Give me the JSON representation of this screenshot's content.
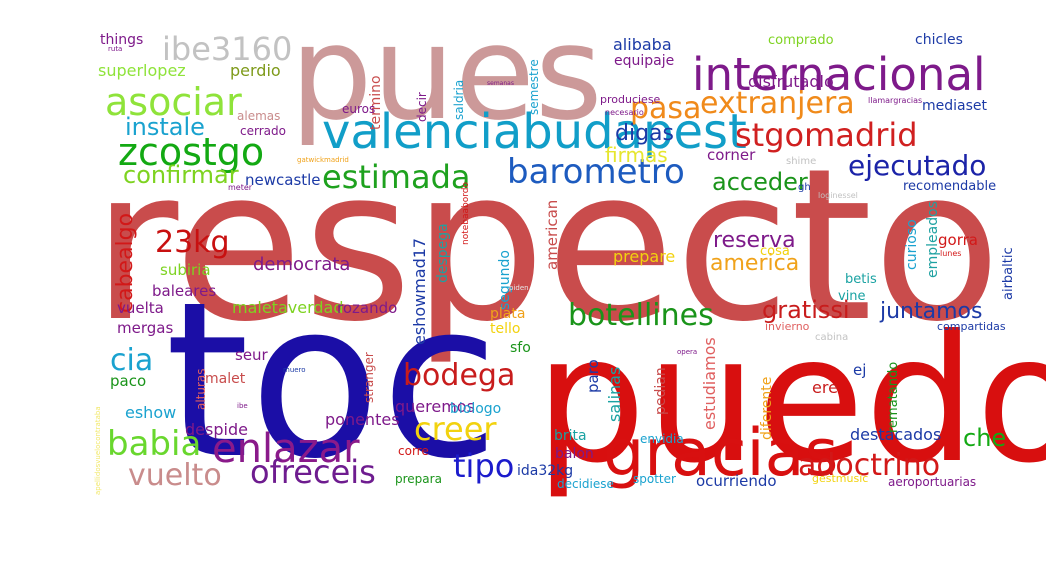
{
  "words": [
    {
      "text": "respecto",
      "color": "#c94c4c"
    },
    {
      "text": "puedo",
      "color": "#d80f0f"
    },
    {
      "text": "toc",
      "color": "#1b0ea6"
    },
    {
      "text": "pues",
      "color": "#cc9999"
    },
    {
      "text": "valenciabudapest",
      "color": "#119ec8"
    },
    {
      "text": "gracias",
      "color": "#d81010"
    },
    {
      "text": "internacional",
      "color": "#7e1a8a"
    },
    {
      "text": "ibe3160",
      "color": "#c2c2c2"
    },
    {
      "text": "asociar",
      "color": "#8fe33a"
    },
    {
      "text": "zcostgo",
      "color": "#13a913"
    },
    {
      "text": "barometro",
      "color": "#1d5bbf"
    },
    {
      "text": "stgomadrid",
      "color": "#d02020"
    },
    {
      "text": "extranjera",
      "color": "#f08a1a"
    },
    {
      "text": "pasa",
      "color": "#f08a1a"
    },
    {
      "text": "estimada",
      "color": "#1ea11e"
    },
    {
      "text": "ejecutado",
      "color": "#1b23a8"
    },
    {
      "text": "botellines",
      "color": "#1a941a"
    },
    {
      "text": "enlazar",
      "color": "#8a1a8a"
    },
    {
      "text": "bodega",
      "color": "#c81c1c"
    },
    {
      "text": "babia",
      "color": "#69d72e"
    },
    {
      "text": "ofreceis",
      "color": "#6e1c8f"
    },
    {
      "text": "vuelto",
      "color": "#c98c8c"
    },
    {
      "text": "creer",
      "color": "#f2d20f"
    },
    {
      "text": "adoctrino",
      "color": "#d21818"
    },
    {
      "text": "tipo",
      "color": "#1c1ccc"
    },
    {
      "text": "cia",
      "color": "#1aa2cf"
    },
    {
      "text": "23kg",
      "color": "#c81010"
    },
    {
      "text": "instale",
      "color": "#1aa2cf"
    },
    {
      "text": "confirmar",
      "color": "#7ed321"
    },
    {
      "text": "acceder",
      "color": "#1a941a"
    },
    {
      "text": "digas",
      "color": "#1c3aa6"
    },
    {
      "text": "firmas",
      "color": "#e6e62e"
    },
    {
      "text": "reserva",
      "color": "#7e1a8a"
    },
    {
      "text": "america",
      "color": "#f0a21a"
    },
    {
      "text": "gratissi",
      "color": "#c81c1c"
    },
    {
      "text": "juntamos",
      "color": "#1c3aa6"
    },
    {
      "text": "che",
      "color": "#13a913"
    },
    {
      "text": "cabealgo",
      "color": "#d21818"
    },
    {
      "text": "democrata",
      "color": "#7e1a8a"
    },
    {
      "text": "superlopez",
      "color": "#8fe33a"
    },
    {
      "text": "perdio",
      "color": "#7e9a1a"
    },
    {
      "text": "things",
      "color": "#7e1a8a"
    },
    {
      "text": "alibaba",
      "color": "#1c3aa6"
    },
    {
      "text": "equipaje",
      "color": "#7e1a8a"
    },
    {
      "text": "comprado",
      "color": "#7ed321"
    },
    {
      "text": "chicles",
      "color": "#1c3aa6"
    },
    {
      "text": "disfrutadlo",
      "color": "#7e1a8a"
    },
    {
      "text": "corner",
      "color": "#7e1a8a"
    },
    {
      "text": "mediaset",
      "color": "#1c3aa6"
    },
    {
      "text": "recomendable",
      "color": "#1c3aa6"
    },
    {
      "text": "newcastle",
      "color": "#1c3aa6"
    },
    {
      "text": "empleados",
      "color": "#1ea1a1"
    },
    {
      "text": "curioso",
      "color": "#1aa2cf"
    },
    {
      "text": "airbaltic",
      "color": "#1c3aa6"
    },
    {
      "text": "gorra",
      "color": "#d21818"
    },
    {
      "text": "betis",
      "color": "#1aa2a2"
    },
    {
      "text": "vine",
      "color": "#1aa2a2"
    },
    {
      "text": "prepare",
      "color": "#f2d20f"
    },
    {
      "text": "segundo",
      "color": "#1aa2cf"
    },
    {
      "text": "american",
      "color": "#c84c4c"
    },
    {
      "text": "despega",
      "color": "#1ea1a1"
    },
    {
      "text": "eshowmad17",
      "color": "#1c3aa6"
    },
    {
      "text": "subiria",
      "color": "#7ed321"
    },
    {
      "text": "baleares",
      "color": "#7e1a8a"
    },
    {
      "text": "vuelta",
      "color": "#7e1a8a"
    },
    {
      "text": "maletaverdad",
      "color": "#7ed321"
    },
    {
      "text": "rozando",
      "color": "#7e1a8a"
    },
    {
      "text": "mergas",
      "color": "#7e1a8a"
    },
    {
      "text": "seur",
      "color": "#7e1a8a"
    },
    {
      "text": "plata",
      "color": "#f0a21a"
    },
    {
      "text": "tello",
      "color": "#f2d20f"
    },
    {
      "text": "sfo",
      "color": "#1a941a"
    },
    {
      "text": "paco",
      "color": "#1a941a"
    },
    {
      "text": "malet",
      "color": "#c84c4c"
    },
    {
      "text": "eshow",
      "color": "#1aa2cf"
    },
    {
      "text": "despide",
      "color": "#7e1a8a"
    },
    {
      "text": "ponentes",
      "color": "#7e1a8a"
    },
    {
      "text": "queremos",
      "color": "#7e1a8a"
    },
    {
      "text": "biologo",
      "color": "#1aa2cf"
    },
    {
      "text": "paro",
      "color": "#1c3aa6"
    },
    {
      "text": "salinas",
      "color": "#1aa2a2"
    },
    {
      "text": "pedian",
      "color": "#c84c4c"
    },
    {
      "text": "estudiamos",
      "color": "#e06060"
    },
    {
      "text": "ere",
      "color": "#c81c1c"
    },
    {
      "text": "ej",
      "color": "#1c3aa6"
    },
    {
      "text": "destacados",
      "color": "#1c3aa6"
    },
    {
      "text": "diferente",
      "color": "#f0a21a"
    },
    {
      "text": "rematando",
      "color": "#1a941a"
    },
    {
      "text": "brita",
      "color": "#1aa2a2"
    },
    {
      "text": "balon",
      "color": "#7e1a8a"
    },
    {
      "text": "envidia",
      "color": "#1aa2cf"
    },
    {
      "text": "ida32kg",
      "color": "#1c3aa6"
    },
    {
      "text": "ocurriendo",
      "color": "#1c3aa6"
    },
    {
      "text": "decidiese",
      "color": "#1aa2cf"
    },
    {
      "text": "spotter",
      "color": "#1aa2cf"
    },
    {
      "text": "prepara",
      "color": "#1a941a"
    },
    {
      "text": "gestmusic",
      "color": "#f2d20f"
    },
    {
      "text": "aeroportuarias",
      "color": "#7e1a8a"
    },
    {
      "text": "corre",
      "color": "#d21818"
    },
    {
      "text": "alturas",
      "color": "#e06060"
    },
    {
      "text": "stranger",
      "color": "#c84c4c"
    },
    {
      "text": "termino",
      "color": "#c84c4c"
    },
    {
      "text": "decir",
      "color": "#7e1a8a"
    },
    {
      "text": "saldria",
      "color": "#1aa2cf"
    },
    {
      "text": "semestre",
      "color": "#1aa2cf"
    },
    {
      "text": "euros",
      "color": "#7e1a8a"
    },
    {
      "text": "alemas",
      "color": "#c98c8c"
    },
    {
      "text": "cerrado",
      "color": "#7e1a8a"
    },
    {
      "text": "produciese",
      "color": "#7e1a8a"
    },
    {
      "text": "necesario",
      "color": "#7e1a8a"
    },
    {
      "text": "semanas",
      "color": "#7e1a8a"
    },
    {
      "text": "llamargracias",
      "color": "#7e1a8a"
    },
    {
      "text": "shime",
      "color": "#c2c2c2"
    },
    {
      "text": "gh",
      "color": "#1c3aa6"
    },
    {
      "text": "notebaabordo",
      "color": "#d21818"
    },
    {
      "text": "loginessel",
      "color": "#c2c2c2"
    },
    {
      "text": "gatwickmadrid",
      "color": "#f0a21a"
    },
    {
      "text": "meter",
      "color": "#7e1a8a"
    },
    {
      "text": "ruta",
      "color": "#7e1a8a"
    },
    {
      "text": "lunes",
      "color": "#d21818"
    },
    {
      "text": "piden",
      "color": "#e6e6e6"
    },
    {
      "text": "invierno",
      "color": "#e06060"
    },
    {
      "text": "compartidas",
      "color": "#1c3aa6"
    },
    {
      "text": "cabina",
      "color": "#c2c2c2"
    },
    {
      "text": "opera",
      "color": "#7e1a8a"
    },
    {
      "text": "muero",
      "color": "#1c3aa6"
    },
    {
      "text": "ibe",
      "color": "#7e1a8a"
    },
    {
      "text": "apellidosvuelocontrataba",
      "color": "#f2e86a"
    },
    {
      "text": "cosa",
      "color": "#f2d20f"
    }
  ]
}
